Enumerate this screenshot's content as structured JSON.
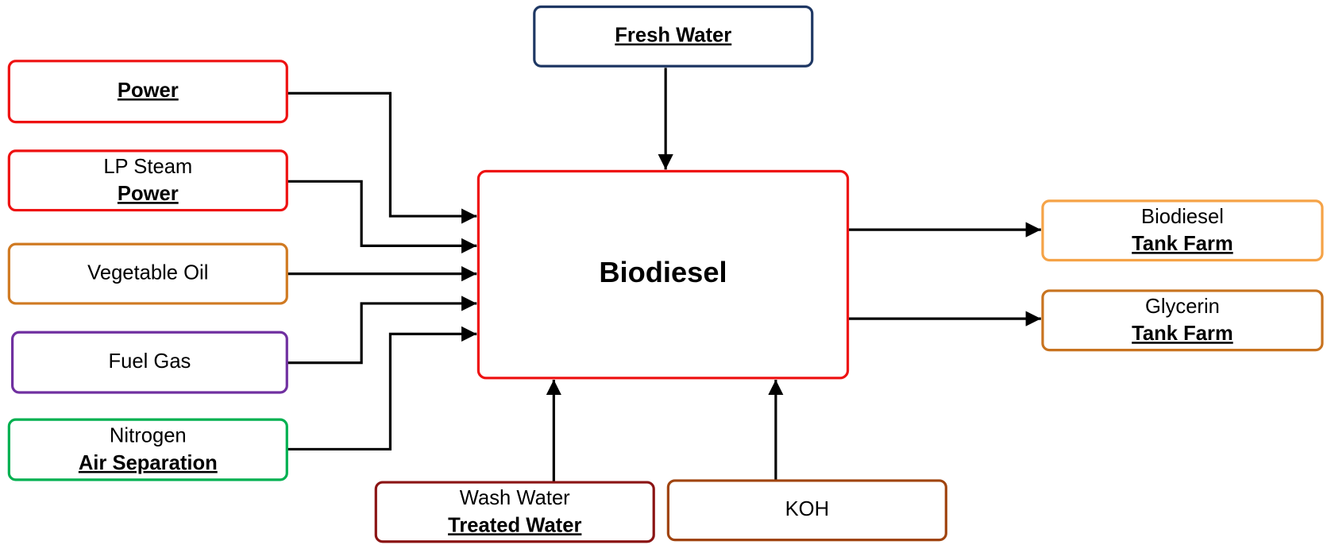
{
  "center": {
    "label": "Biodiesel"
  },
  "nodes": [
    {
      "link": "Fresh Water"
    },
    {
      "link": "Power"
    },
    {
      "text": "LP Steam",
      "link": "Power"
    },
    {
      "text": "Vegetable Oil"
    },
    {
      "text": "Fuel Gas"
    },
    {
      "text": "Nitrogen",
      "link": "Air Separation"
    },
    {
      "text": "Biodiesel",
      "link": "Tank Farm"
    },
    {
      "text": "Glycerin",
      "link": "Tank Farm"
    },
    {
      "text": "Wash Water",
      "link": "Treated Water"
    },
    {
      "text": "KOH"
    }
  ]
}
